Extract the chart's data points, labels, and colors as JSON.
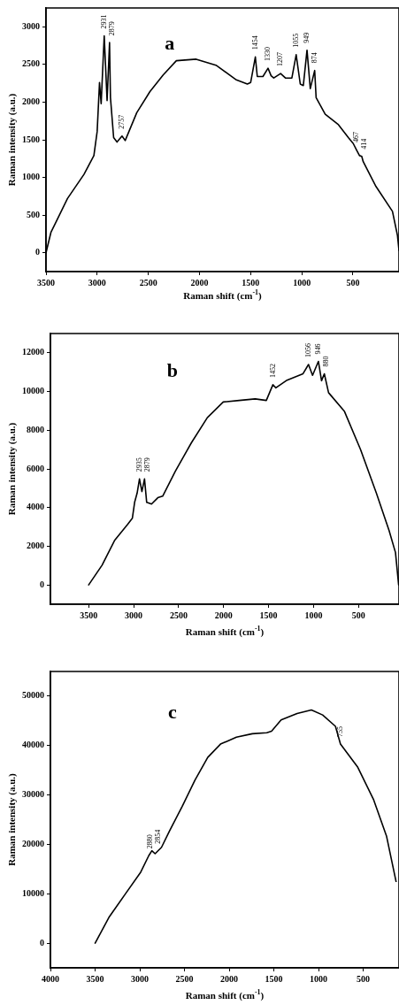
{
  "chart_data": [
    {
      "type": "line",
      "xlabel": "Raman shift (cm$^{-1}$)",
      "ylabel": "Raman intensity (a.u.)",
      "xlim": [
        3500,
        50
      ],
      "ylim": [
        -250,
        3250
      ],
      "xticks": [
        3500,
        3000,
        2500,
        2000,
        1500,
        1000,
        500
      ],
      "yticks": [
        0,
        500,
        1000,
        1500,
        2000,
        2500,
        3000
      ],
      "grid": false,
      "legend": false,
      "marker": "none",
      "line_style": "solid",
      "series": [
        {
          "color": "#000000",
          "x": [
            3500,
            3452,
            3290,
            3129,
            3032,
            3000,
            2977,
            2961,
            2931,
            2903,
            2879,
            2870,
            2839,
            2806,
            2757,
            2726,
            2613,
            2484,
            2355,
            2226,
            2032,
            1839,
            1645,
            1532,
            1500,
            1454,
            1435,
            1380,
            1330,
            1300,
            1274,
            1207,
            1160,
            1097,
            1055,
            1015,
            985,
            949,
            917,
            874,
            860,
            771,
            642,
            545,
            497,
            467,
            436,
            414,
            400,
            275,
            114,
            65,
            50
          ],
          "values": [
            0,
            270,
            720,
            1040,
            1290,
            1610,
            2260,
            1980,
            2880,
            2020,
            2790,
            2060,
            1530,
            1470,
            1550,
            1490,
            1860,
            2140,
            2360,
            2550,
            2570,
            2490,
            2300,
            2240,
            2260,
            2600,
            2340,
            2340,
            2450,
            2350,
            2320,
            2380,
            2320,
            2320,
            2630,
            2240,
            2220,
            2690,
            2180,
            2420,
            2060,
            1840,
            1700,
            1530,
            1450,
            1370,
            1290,
            1280,
            1210,
            880,
            550,
            230,
            30
          ]
        }
      ],
      "annotations": [
        "a",
        {
          "text": "2931",
          "x": 2931,
          "y": 2880
        },
        {
          "text": "2879",
          "x": 2879,
          "y": 2790
        },
        {
          "text": "2757",
          "x": 2757,
          "y": 1550
        },
        {
          "text": "1454",
          "x": 1454,
          "y": 2600
        },
        {
          "text": "1330",
          "x": 1330,
          "y": 2450
        },
        {
          "text": "1207",
          "x": 1207,
          "y": 2380
        },
        {
          "text": "1055",
          "x": 1055,
          "y": 2630
        },
        {
          "text": "949",
          "x": 949,
          "y": 2690
        },
        {
          "text": "874",
          "x": 874,
          "y": 2425
        },
        {
          "text": "467",
          "x": 467,
          "y": 1370
        },
        {
          "text": "414",
          "x": 414,
          "y": 1280
        }
      ]
    },
    {
      "type": "line",
      "xlabel": "Raman shift (cm$^{-1}$)",
      "ylabel": "Raman intensity (a.u.)",
      "xlim": [
        3925,
        50
      ],
      "ylim": [
        -1000,
        13000
      ],
      "xticks": [
        3500,
        3000,
        2500,
        2000,
        1500,
        1000,
        500
      ],
      "yticks": [
        0,
        2000,
        4000,
        6000,
        8000,
        10000,
        12000
      ],
      "grid": false,
      "legend": false,
      "marker": "none",
      "line_style": "solid",
      "series": [
        {
          "color": "#000000",
          "x": [
            3500,
            3351,
            3209,
            3067,
            3014,
            2989,
            2961,
            2935,
            2908,
            2879,
            2855,
            2801,
            2731,
            2677,
            2535,
            2358,
            2181,
            2004,
            1826,
            1649,
            1525,
            1452,
            1419,
            1294,
            1117,
            1056,
            1011,
            946,
            911,
            880,
            833,
            656,
            479,
            302,
            160,
            89,
            54
          ],
          "values": [
            0,
            1020,
            2320,
            3130,
            3450,
            4270,
            4750,
            5480,
            4830,
            5480,
            4270,
            4180,
            4510,
            4590,
            5890,
            7350,
            8650,
            9460,
            9540,
            9620,
            9540,
            10350,
            10190,
            10590,
            10920,
            11400,
            10840,
            11560,
            10560,
            10920,
            9940,
            8970,
            7020,
            4750,
            2810,
            1670,
            0
          ]
        }
      ],
      "annotations": [
        "b",
        {
          "text": "2935",
          "x": 2935,
          "y": 5480
        },
        {
          "text": "2879",
          "x": 2879,
          "y": 5480
        },
        {
          "text": "1452",
          "x": 1452,
          "y": 10350
        },
        {
          "text": "1056",
          "x": 1056,
          "y": 11400
        },
        {
          "text": "946",
          "x": 946,
          "y": 11560
        },
        {
          "text": "880",
          "x": 880,
          "y": 10920
        }
      ]
    },
    {
      "type": "line",
      "xlabel": "Raman shift (cm$^{-1}$)",
      "ylabel": "Raman intensity (a.u.)",
      "xlim": [
        4000,
        100
      ],
      "ylim": [
        -5000,
        55000
      ],
      "xticks": [
        4000,
        3500,
        3000,
        2500,
        2000,
        1500,
        1000,
        500
      ],
      "yticks": [
        0,
        10000,
        20000,
        30000,
        40000,
        50000
      ],
      "grid": false,
      "legend": false,
      "marker": "none",
      "line_style": "solid",
      "series": [
        {
          "color": "#000000",
          "x": [
            3500,
            3346,
            3168,
            2989,
            2900,
            2865,
            2829,
            2757,
            2668,
            2525,
            2383,
            2240,
            2097,
            1919,
            1741,
            1579,
            1526,
            1419,
            1240,
            1080,
            955,
            811,
            755,
            561,
            383,
            240,
            133
          ],
          "values": [
            0,
            5200,
            9800,
            14400,
            17700,
            18700,
            18100,
            19400,
            22700,
            27700,
            33000,
            37600,
            40300,
            41700,
            42400,
            42600,
            42900,
            45200,
            46500,
            47200,
            46200,
            43900,
            40300,
            35600,
            29000,
            21700,
            12500
          ]
        }
      ],
      "annotations": [
        "c",
        {
          "text": "2880",
          "x": 2880,
          "y": 17700
        },
        {
          "text": "2854",
          "x": 2854,
          "y": 18700
        },
        {
          "text": "755",
          "x": 755,
          "y": 40300
        }
      ]
    }
  ]
}
